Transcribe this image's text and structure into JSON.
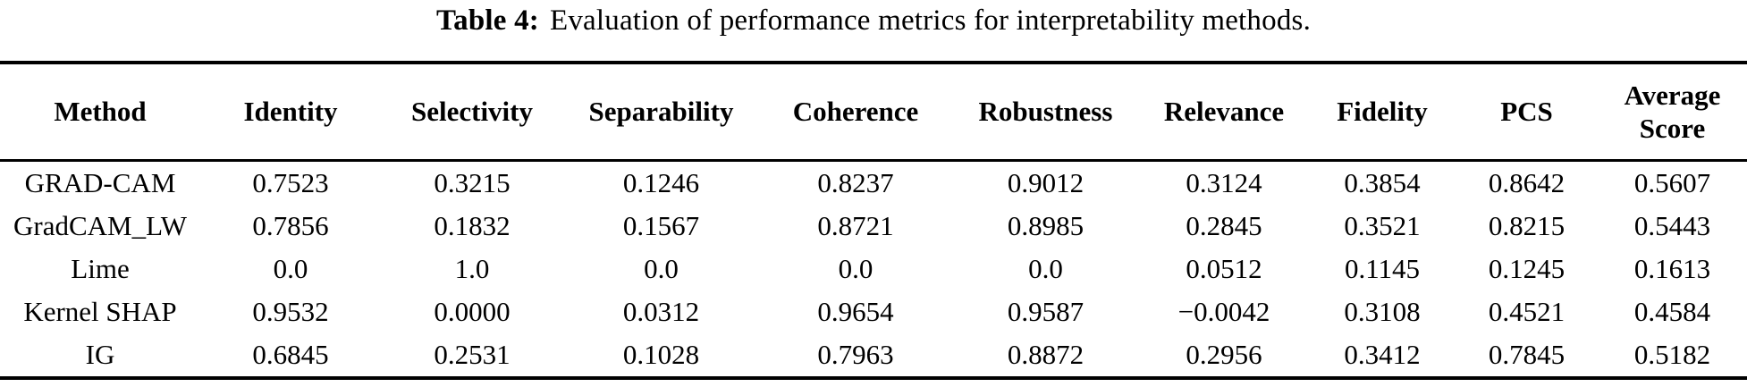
{
  "caption": {
    "label": "Table 4:",
    "text": "Evaluation of performance metrics for interpretability methods."
  },
  "table": {
    "columns": [
      "Method",
      "Identity",
      "Selectivity",
      "Separability",
      "Coherence",
      "Robustness",
      "Relevance",
      "Fidelity",
      "PCS",
      "Average Score"
    ],
    "rows": [
      {
        "method": "GRAD-CAM",
        "values": [
          "0.7523",
          "0.3215",
          "0.1246",
          "0.8237",
          "0.9012",
          "0.3124",
          "0.3854",
          "0.8642",
          "0.5607"
        ]
      },
      {
        "method": "GradCAM_LW",
        "values": [
          "0.7856",
          "0.1832",
          "0.1567",
          "0.8721",
          "0.8985",
          "0.2845",
          "0.3521",
          "0.8215",
          "0.5443"
        ]
      },
      {
        "method": "Lime",
        "values": [
          "0.0",
          "1.0",
          "0.0",
          "0.0",
          "0.0",
          "0.0512",
          "0.1145",
          "0.1245",
          "0.1613"
        ]
      },
      {
        "method": "Kernel SHAP",
        "values": [
          "0.9532",
          "0.0000",
          "0.0312",
          "0.9654",
          "0.9587",
          "−0.0042",
          "0.3108",
          "0.4521",
          "0.4584"
        ]
      },
      {
        "method": "IG",
        "values": [
          "0.6845",
          "0.2531",
          "0.1028",
          "0.7963",
          "0.8872",
          "0.2956",
          "0.3412",
          "0.7845",
          "0.5182"
        ]
      }
    ]
  },
  "colors": {
    "background": "#ffffff",
    "text": "#000000",
    "rule": "#000000"
  }
}
